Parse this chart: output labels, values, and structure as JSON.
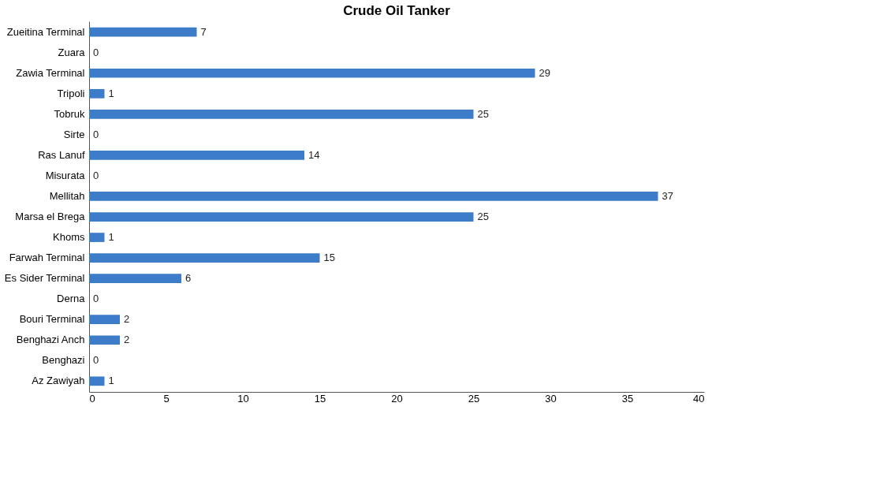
{
  "chart_data": {
    "type": "bar",
    "orientation": "horizontal",
    "title": "Crude Oil Tanker",
    "categories": [
      "Zueitina Terminal",
      "Zuara",
      "Zawia Terminal",
      "Tripoli",
      "Tobruk",
      "Sirte",
      "Ras Lanuf",
      "Misurata",
      "Mellitah",
      "Marsa el Brega",
      "Khoms",
      "Farwah Terminal",
      "Es Sider Terminal",
      "Derna",
      "Bouri Terminal",
      "Benghazi Anch",
      "Benghazi",
      "Az Zawiyah"
    ],
    "values": [
      7,
      0,
      29,
      1,
      25,
      0,
      14,
      0,
      37,
      25,
      1,
      15,
      6,
      0,
      2,
      2,
      0,
      1
    ],
    "color": "#3c7cc8",
    "xlim": [
      0,
      40
    ],
    "xticks": [
      0,
      5,
      10,
      15,
      20,
      25,
      30,
      35,
      40
    ],
    "grid": false,
    "data_labels": true
  }
}
